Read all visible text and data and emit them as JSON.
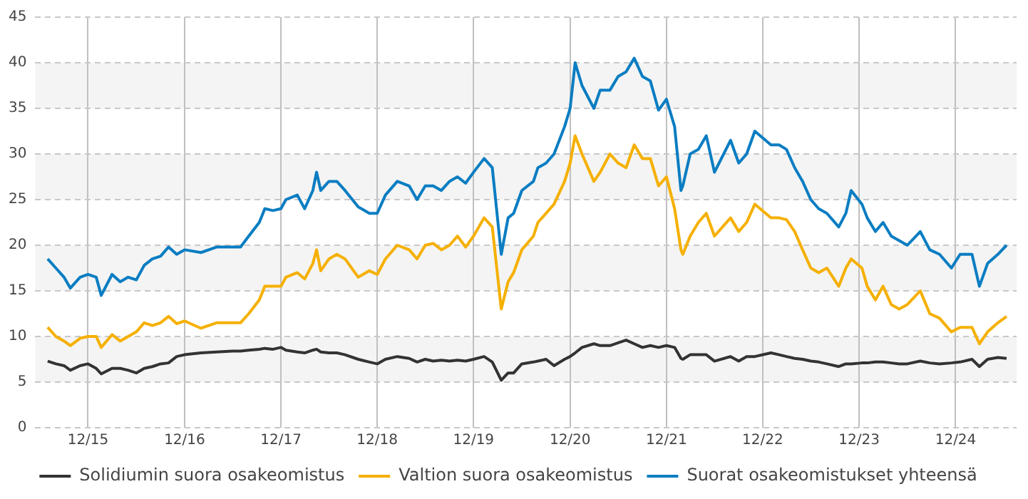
{
  "chart_data": {
    "type": "line",
    "legend": "bottom",
    "grid": true,
    "line_style": "solid",
    "x": [
      "2015-07",
      "2015-08",
      "2015-09",
      "2015-09-25",
      "2015-11",
      "2015-12",
      "2016-01",
      "2016-01-20",
      "2016-03",
      "2016-04",
      "2016-05",
      "2016-06",
      "2016-07",
      "2016-08",
      "2016-09",
      "2016-10",
      "2016-11",
      "2016-12",
      "2017-02",
      "2017-04",
      "2017-06",
      "2017-07",
      "2017-08",
      "2017-09-10",
      "2017-10",
      "2017-11",
      "2017-12",
      "2017-12-20",
      "2018-02",
      "2018-03",
      "2018-04",
      "2018-04-15",
      "2018-05",
      "2018-06",
      "2018-07",
      "2018-08",
      "2018-09-20",
      "2018-11",
      "2018-12",
      "2019-01",
      "2019-02-15",
      "2019-04",
      "2019-05",
      "2019-06",
      "2019-07",
      "2019-08",
      "2019-09",
      "2019-10",
      "2019-11",
      "2019-12",
      "2020-01-10",
      "2020-02-10",
      "2020-03-15",
      "2020-04-10",
      "2020-05",
      "2020-06",
      "2020-07-15",
      "2020-08",
      "2020-09",
      "2020-10",
      "2020-11-10",
      "2020-12",
      "2020-12-20",
      "2021-01-15",
      "2021-03",
      "2021-03-25",
      "2021-05",
      "2021-06",
      "2021-07",
      "2021-08",
      "2021-09",
      "2021-10",
      "2021-11",
      "2021-12",
      "2022-01",
      "2022-01-25",
      "2022-02",
      "2022-03",
      "2022-04",
      "2022-05",
      "2022-06",
      "2022-08",
      "2022-09",
      "2022-10",
      "2022-11",
      "2023-01",
      "2023-02",
      "2023-03",
      "2023-04",
      "2023-05",
      "2023-06",
      "2023-07",
      "2023-08",
      "2023-09-15",
      "2023-10-12",
      "2023-11",
      "2023-12-12",
      "2024-01",
      "2024-02",
      "2024-03",
      "2024-04",
      "2024-05",
      "2024-06",
      "2024-07-20",
      "2024-08-25",
      "2024-10",
      "2024-11-15",
      "2024-12-18",
      "2025-02",
      "2025-03",
      "2025-04",
      "2025-05-10",
      "2025-06-12"
    ],
    "series": [
      {
        "name": "Solidiumin suora osakeomistus",
        "color": "#333333",
        "values": [
          7.3,
          7,
          6.8,
          6.3,
          6.8,
          7,
          6.5,
          5.9,
          6.5,
          6.5,
          6.3,
          6,
          6.5,
          6.7,
          7,
          7.1,
          7.8,
          8,
          8.2,
          8.3,
          8.4,
          8.4,
          8.5,
          8.6,
          8.7,
          8.6,
          8.8,
          8.5,
          8.3,
          8.2,
          8.5,
          8.6,
          8.3,
          8.2,
          8.2,
          8,
          7.5,
          7.2,
          7,
          7.5,
          7.8,
          7.6,
          7.2,
          7.5,
          7.3,
          7.4,
          7.3,
          7.4,
          7.3,
          7.5,
          7.8,
          7.2,
          5.2,
          6,
          6,
          7,
          7.2,
          7.3,
          7.5,
          6.8,
          7.5,
          7.8,
          8.2,
          8.8,
          9.2,
          9,
          9,
          9.3,
          9.6,
          9.2,
          8.8,
          9,
          8.8,
          9,
          8.8,
          7.6,
          7.5,
          8,
          8,
          8,
          7.3,
          7.8,
          7.3,
          7.8,
          7.8,
          8.2,
          8,
          7.8,
          7.6,
          7.5,
          7.3,
          7.2,
          7,
          6.7,
          7,
          7,
          7.1,
          7.1,
          7.2,
          7.2,
          7.1,
          7,
          7,
          7.3,
          7.1,
          7,
          7.1,
          7.2,
          7.5,
          6.7,
          7.5,
          7.7,
          7.6
        ]
      },
      {
        "name": "Valtion suora osakeomistus",
        "color": "#f5b000",
        "values": [
          11,
          10,
          9.5,
          9,
          9.8,
          10,
          10,
          8.8,
          10.2,
          9.5,
          10,
          10.5,
          11.5,
          11.2,
          11.5,
          12.2,
          11.4,
          11.7,
          10.9,
          11.5,
          11.5,
          11.5,
          12.5,
          14,
          15.5,
          15.5,
          15.5,
          16.5,
          17,
          16.3,
          18,
          19.5,
          17.2,
          18.5,
          19,
          18.5,
          16.5,
          17.2,
          16.8,
          18.5,
          20,
          19.5,
          18.5,
          20,
          20.2,
          19.5,
          20,
          21,
          19.8,
          21,
          23,
          22,
          13,
          16,
          17,
          19.5,
          21,
          22.5,
          23.5,
          24.5,
          27,
          29,
          32,
          30,
          27,
          28,
          30,
          29,
          28.5,
          31,
          29.5,
          29.5,
          26.5,
          27.5,
          24,
          19.5,
          19,
          21,
          22.5,
          23.5,
          21,
          23,
          21.5,
          22.5,
          24.5,
          23,
          23,
          22.8,
          21.5,
          19.5,
          17.5,
          17,
          17.5,
          15.5,
          17.5,
          18.5,
          17.5,
          15.5,
          14,
          15.5,
          13.5,
          13,
          13.5,
          15,
          12.5,
          12,
          10.5,
          11,
          11,
          9.2,
          10.5,
          11.5,
          12.2
        ]
      },
      {
        "name": "Suorat osakeomistukset yhteensä",
        "color": "#0a7dc2",
        "values": [
          18.5,
          17.5,
          16.5,
          15.3,
          16.5,
          16.8,
          16.5,
          14.5,
          16.8,
          16,
          16.5,
          16.2,
          17.8,
          18.5,
          18.8,
          19.8,
          19,
          19.5,
          19.2,
          19.8,
          19.8,
          19.8,
          21,
          22.5,
          24,
          23.8,
          24,
          25,
          25.5,
          24,
          26,
          28,
          26,
          27,
          27,
          26,
          24.2,
          23.5,
          23.5,
          25.5,
          27,
          26.5,
          25,
          26.5,
          26.5,
          26,
          27,
          27.5,
          26.8,
          28,
          29.5,
          28.5,
          19,
          23,
          23.5,
          26,
          27,
          28.5,
          29,
          30,
          33,
          35,
          40,
          37.5,
          35,
          37,
          37,
          38.5,
          39,
          40.5,
          38.5,
          38,
          34.8,
          36,
          33,
          26,
          26.5,
          30,
          30.5,
          32,
          28,
          31.5,
          29,
          30,
          32.5,
          31,
          31,
          30.5,
          28.5,
          27,
          25,
          24,
          23.5,
          22,
          23.5,
          26,
          24.5,
          23,
          21.5,
          22.5,
          21,
          20.5,
          20,
          21.5,
          19.5,
          19,
          17.5,
          19,
          19,
          15.5,
          18,
          19,
          20
        ]
      }
    ],
    "xlim": [
      "2015-05-15",
      "2025-07-20"
    ],
    "xticks": [
      {
        "value": "2015-12-01",
        "label": "12/15"
      },
      {
        "value": "2016-12-01",
        "label": "12/16"
      },
      {
        "value": "2017-12-01",
        "label": "12/17"
      },
      {
        "value": "2018-12-01",
        "label": "12/18"
      },
      {
        "value": "2019-12-01",
        "label": "12/19"
      },
      {
        "value": "2020-12-01",
        "label": "12/20"
      },
      {
        "value": "2021-12-01",
        "label": "12/21"
      },
      {
        "value": "2022-12-01",
        "label": "12/22"
      },
      {
        "value": "2023-12-01",
        "label": "12/23"
      },
      {
        "value": "2024-12-01",
        "label": "12/24"
      }
    ],
    "ylim": [
      0,
      45
    ],
    "yticks": [
      0,
      5,
      10,
      15,
      20,
      25,
      30,
      35,
      40,
      45
    ]
  }
}
